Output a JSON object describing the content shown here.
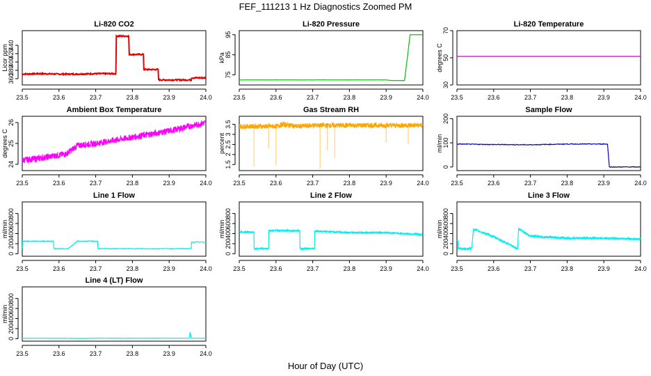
{
  "figure": {
    "title": "FEF_111213  1 Hz Diagnostics Zoomed PM",
    "xlabel": "Hour of Day (UTC)"
  },
  "chart_data": [
    {
      "type": "line",
      "title": "Li-820 CO2",
      "ylabel": "Licor ppm",
      "color": "#e00000",
      "xlim": [
        23.5,
        24.0
      ],
      "ylim": [
        345,
        475
      ],
      "xticks": [
        "23.5",
        "23.6",
        "23.7",
        "23.8",
        "23.9",
        "24.0"
      ],
      "yticks": [
        360,
        380,
        400,
        420,
        440
      ],
      "series": [
        {
          "x": [
            23.5,
            23.55,
            23.6,
            23.65,
            23.7,
            23.745,
            23.755,
            23.755,
            23.79,
            23.79,
            23.83,
            23.83,
            23.87,
            23.87,
            23.96,
            23.96,
            24.0
          ],
          "y": [
            371,
            372,
            371,
            371,
            372,
            372,
            372,
            462,
            462,
            418,
            418,
            382,
            382,
            357,
            357,
            362,
            362
          ]
        }
      ]
    },
    {
      "type": "line",
      "title": "Li-820 Pressure",
      "ylabel": "kPa",
      "color": "#00c000",
      "xlim": [
        23.5,
        24.0
      ],
      "ylim": [
        70,
        97
      ],
      "xticks": [
        "23.5",
        "23.6",
        "23.7",
        "23.8",
        "23.9",
        "24.0"
      ],
      "yticks": [
        75,
        85,
        95
      ],
      "series": [
        {
          "x": [
            23.5,
            23.9,
            23.915,
            23.95,
            23.96,
            23.965,
            24.0
          ],
          "y": [
            72.5,
            72.5,
            72.2,
            72.2,
            87,
            95,
            95
          ]
        }
      ]
    },
    {
      "type": "line",
      "title": "Li-820 Temperature",
      "ylabel": "degrees C",
      "color": "#cc00cc",
      "xlim": [
        23.5,
        24.0
      ],
      "ylim": [
        30,
        70
      ],
      "xticks": [
        "23.5",
        "23.6",
        "23.7",
        "23.8",
        "23.9",
        "24.0"
      ],
      "yticks": [
        30,
        50,
        70
      ],
      "series": [
        {
          "x": [
            23.5,
            24.0
          ],
          "y": [
            51,
            51
          ]
        }
      ]
    },
    {
      "type": "line",
      "title": "Ambient Box Temperature",
      "ylabel": "degrees C",
      "color": "#ff00ff",
      "xlim": [
        23.5,
        24.0
      ],
      "ylim": [
        23.7,
        26.3
      ],
      "xticks": [
        "23.5",
        "23.6",
        "23.7",
        "23.8",
        "23.9",
        "24.0"
      ],
      "yticks": [
        24.0,
        25.0,
        26.0
      ],
      "series": [
        {
          "x": [
            23.5,
            23.55,
            23.62,
            23.65,
            23.7,
            23.8,
            23.9,
            24.0
          ],
          "y": [
            24.2,
            24.3,
            24.5,
            24.9,
            25.0,
            25.3,
            25.6,
            26.0
          ]
        }
      ]
    },
    {
      "type": "line",
      "title": "Gas Stream RH",
      "ylabel": "percent",
      "color": "#ffa500",
      "xlim": [
        23.5,
        24.0
      ],
      "ylim": [
        1.2,
        3.9
      ],
      "xticks": [
        "23.5",
        "23.6",
        "23.7",
        "23.8",
        "23.9",
        "24.0"
      ],
      "yticks": [
        1.5,
        2.0,
        2.5,
        3.0,
        3.5
      ],
      "series": [
        {
          "x": [
            23.5,
            23.6,
            23.62,
            23.66,
            23.7,
            23.8,
            23.9,
            24.0
          ],
          "y": [
            3.4,
            3.4,
            3.5,
            3.4,
            3.45,
            3.45,
            3.45,
            3.45
          ]
        }
      ]
    },
    {
      "type": "line",
      "title": "Sample Flow",
      "ylabel": "ml/min",
      "color": "#0000cc",
      "xlim": [
        23.5,
        24.0
      ],
      "ylim": [
        -15,
        210
      ],
      "xticks": [
        "23.5",
        "23.6",
        "23.7",
        "23.8",
        "23.9",
        "24.0"
      ],
      "yticks": [
        0,
        100,
        200
      ],
      "series": [
        {
          "x": [
            23.5,
            23.6,
            23.7,
            23.8,
            23.9,
            23.91,
            23.915,
            24.0
          ],
          "y": [
            95,
            93,
            92,
            95,
            95,
            95,
            0,
            0
          ]
        }
      ]
    },
    {
      "type": "line",
      "title": "Line 1 Flow",
      "ylabel": "ml/min",
      "color": "#00eeee",
      "xlim": [
        23.5,
        24.0
      ],
      "ylim": [
        -50,
        1030
      ],
      "xticks": [
        "23.5",
        "23.6",
        "23.7",
        "23.8",
        "23.9",
        "24.0"
      ],
      "yticks": [
        0,
        200,
        400,
        600,
        800
      ],
      "series": [
        {
          "x": [
            23.5,
            23.501,
            23.585,
            23.585,
            23.625,
            23.65,
            23.705,
            23.705,
            23.96,
            23.96,
            24.0
          ],
          "y": [
            110,
            250,
            250,
            100,
            100,
            250,
            250,
            100,
            100,
            230,
            230
          ]
        }
      ]
    },
    {
      "type": "line",
      "title": "Line 2 Flow",
      "ylabel": "ml/min",
      "color": "#00eeee",
      "xlim": [
        23.5,
        24.0
      ],
      "ylim": [
        -50,
        1030
      ],
      "xticks": [
        "23.5",
        "23.6",
        "23.7",
        "23.8",
        "23.9",
        "24.0"
      ],
      "yticks": [
        0,
        200,
        400,
        600,
        800
      ],
      "series": [
        {
          "x": [
            23.5,
            23.54,
            23.54,
            23.58,
            23.58,
            23.665,
            23.665,
            23.705,
            23.705,
            23.8,
            23.9,
            24.0
          ],
          "y": [
            430,
            430,
            100,
            100,
            460,
            460,
            100,
            100,
            450,
            420,
            420,
            380
          ]
        }
      ]
    },
    {
      "type": "line",
      "title": "Line 3 Flow",
      "ylabel": "ml/min",
      "color": "#00eeee",
      "xlim": [
        23.5,
        24.0
      ],
      "ylim": [
        -50,
        1030
      ],
      "xticks": [
        "23.5",
        "23.6",
        "23.7",
        "23.8",
        "23.9",
        "24.0"
      ],
      "yticks": [
        0,
        200,
        400,
        600,
        800
      ],
      "series": [
        {
          "x": [
            23.5,
            23.503,
            23.503,
            23.54,
            23.545,
            23.6,
            23.665,
            23.668,
            23.7,
            23.8,
            23.9,
            24.0
          ],
          "y": [
            260,
            260,
            100,
            100,
            490,
            340,
            100,
            500,
            350,
            310,
            310,
            290
          ]
        }
      ]
    },
    {
      "type": "line",
      "title": "Line 4 (LT) Flow",
      "ylabel": "ml/min",
      "color": "#00eeee",
      "xlim": [
        23.5,
        24.0
      ],
      "ylim": [
        -50,
        1030
      ],
      "xticks": [
        "23.5",
        "23.6",
        "23.7",
        "23.8",
        "23.9",
        "24.0"
      ],
      "yticks": [
        0,
        200,
        400,
        600,
        800
      ],
      "series": [
        {
          "x": [
            23.5,
            23.6,
            23.65,
            23.7,
            23.955,
            23.957,
            23.96,
            24.0
          ],
          "y": [
            10,
            10,
            5,
            10,
            10,
            150,
            10,
            10
          ]
        }
      ]
    }
  ]
}
